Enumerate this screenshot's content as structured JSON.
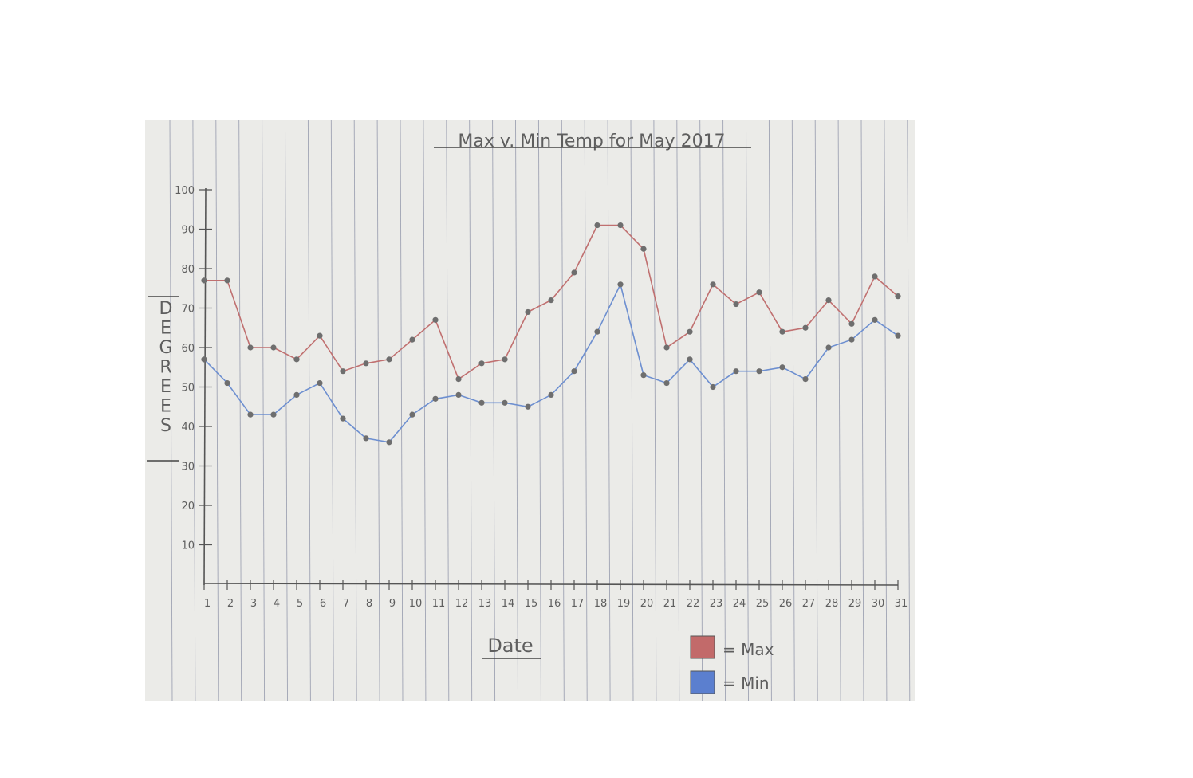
{
  "chart_data": {
    "type": "line",
    "title": "Max v. Min Temp for May 2017",
    "xlabel": "Date",
    "ylabel": "DEGREES",
    "x": [
      1,
      2,
      3,
      4,
      5,
      6,
      7,
      8,
      9,
      10,
      11,
      12,
      13,
      14,
      15,
      16,
      17,
      18,
      19,
      20,
      21,
      22,
      23,
      24,
      25,
      26,
      27,
      28,
      29,
      30,
      31
    ],
    "x_tick_labels": [
      "1",
      "2",
      "3",
      "4",
      "5",
      "6",
      "7",
      "8",
      "9",
      "10",
      "11",
      "12",
      "13",
      "14",
      "15",
      "16",
      "17",
      "18",
      "19",
      "20",
      "21",
      "22",
      "23",
      "24",
      "25",
      "26",
      "27",
      "28",
      "29",
      "30",
      "31"
    ],
    "y_tick_labels": [
      "10",
      "20",
      "30",
      "40",
      "50",
      "60",
      "70",
      "80",
      "90",
      "100"
    ],
    "ylim": [
      0,
      100
    ],
    "xlim": [
      1,
      31
    ],
    "series": [
      {
        "name": "Max",
        "color": "#c07070",
        "values": [
          77,
          77,
          60,
          60,
          57,
          63,
          54,
          56,
          57,
          62,
          67,
          52,
          56,
          57,
          69,
          72,
          79,
          91,
          91,
          85,
          60,
          64,
          76,
          71,
          74,
          64,
          65,
          72,
          66,
          78,
          73
        ]
      },
      {
        "name": "Min",
        "color": "#6d8fd0",
        "values": [
          57,
          51,
          43,
          43,
          48,
          51,
          42,
          37,
          36,
          43,
          47,
          48,
          46,
          46,
          45,
          48,
          54,
          64,
          76,
          53,
          51,
          57,
          50,
          54,
          54,
          55,
          52,
          60,
          62,
          67,
          63
        ]
      }
    ],
    "legend": {
      "placement": "bottom-right",
      "entries": [
        {
          "label": "= Max",
          "color": "#c26a6a"
        },
        {
          "label": "= Min",
          "color": "#5b7fcf"
        }
      ]
    },
    "grid": false
  }
}
